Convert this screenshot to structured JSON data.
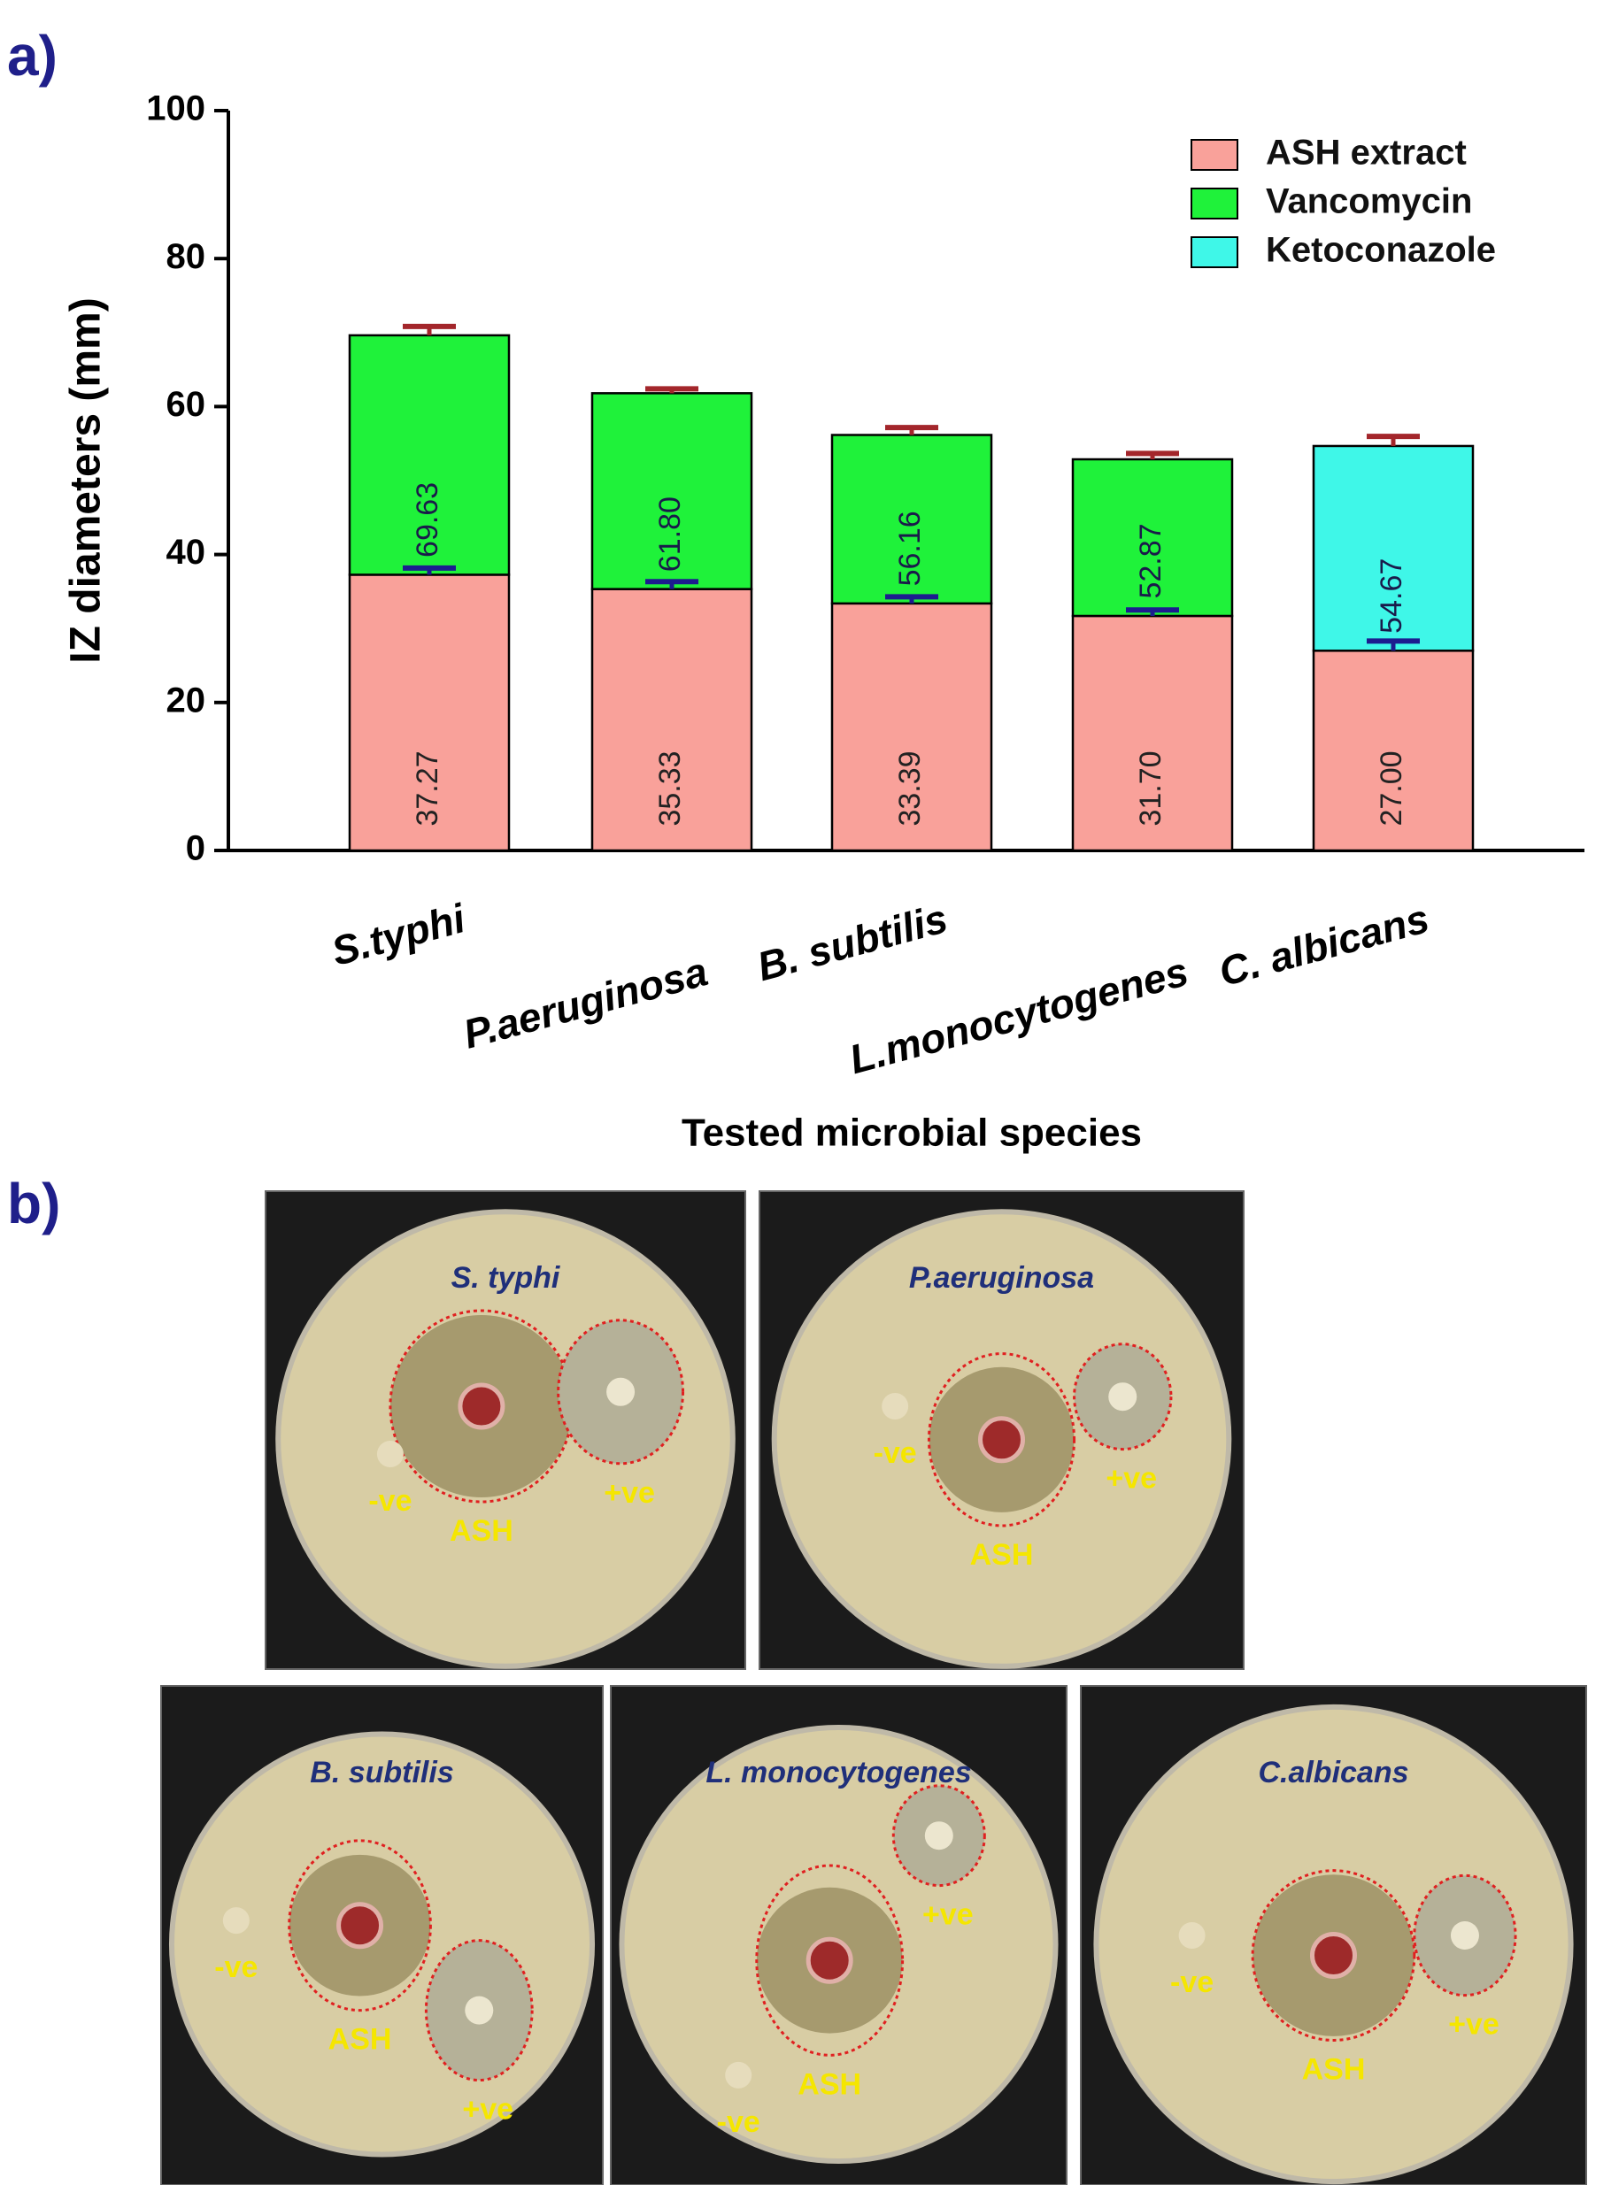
{
  "panel_a_label": "a)",
  "panel_b_label": "b)",
  "chart_data": {
    "type": "stacked_bar",
    "ylabel": "IZ diameters (mm)",
    "xlabel": "Tested microbial species",
    "categories": [
      "S.typhi",
      "P.aeruginosa",
      "B. subtilis",
      "L.monocytogenes",
      "C. albicans"
    ],
    "ylim": [
      0,
      100
    ],
    "yticks": [
      0,
      20,
      40,
      60,
      80,
      100
    ],
    "legend": "top-right",
    "series": [
      {
        "name": "ASH extract",
        "color": "#f9a19a",
        "error_color": "#1c1c8f",
        "values": [
          37.27,
          35.33,
          33.39,
          31.7,
          27.0
        ],
        "errors": [
          0.9,
          1.0,
          0.9,
          0.8,
          1.3
        ],
        "value_labels": [
          "37.27",
          "35.33",
          "33.39",
          "31.70",
          "27.00"
        ]
      },
      {
        "name": "Vancomycin",
        "color": "#1ff23a",
        "error_color": "#a3262b",
        "values": [
          32.36,
          26.47,
          22.77,
          21.17,
          null
        ],
        "errors": [
          1.2,
          0.6,
          1.0,
          0.8,
          null
        ]
      },
      {
        "name": "Ketoconazole",
        "color": "#3ff7e8",
        "error_color": "#a3262b",
        "values": [
          null,
          null,
          null,
          null,
          27.67
        ],
        "errors": [
          null,
          null,
          null,
          null,
          1.3
        ]
      }
    ],
    "total_labels": [
      "69.63",
      "61.80",
      "56.16",
      "52.87",
      "54.67"
    ]
  },
  "photos": [
    {
      "title": "S. typhi",
      "labels": [
        "-ve",
        "ASH",
        "+ve"
      ]
    },
    {
      "title": "P.aeruginosa",
      "labels": [
        "-ve",
        "ASH",
        "+ve"
      ]
    },
    {
      "title": "B. subtilis",
      "labels": [
        "-ve",
        "ASH",
        "+ve"
      ]
    },
    {
      "title": "L. monocytogenes",
      "labels": [
        "-ve",
        "ASH",
        "+ve"
      ]
    },
    {
      "title": "C.albicans",
      "labels": [
        "-ve",
        "ASH",
        "+ve"
      ]
    }
  ]
}
